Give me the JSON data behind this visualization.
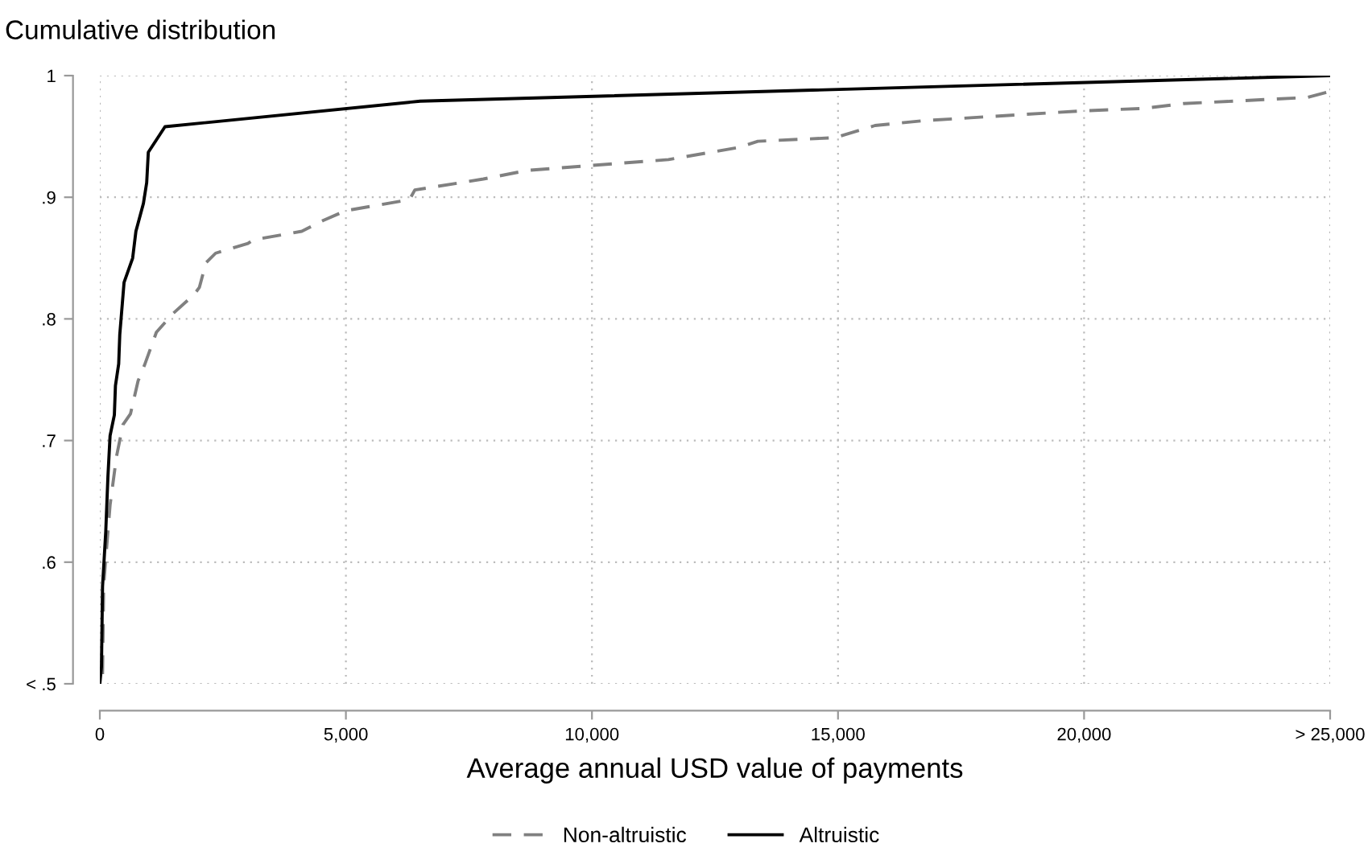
{
  "chart_data": {
    "type": "line",
    "title": "Cumulative distribution",
    "xlabel": "Average annual USD value of payments",
    "xlim": [
      0,
      25000
    ],
    "xticks": [
      {
        "value": 0,
        "label": "0"
      },
      {
        "value": 5000,
        "label": "5,000"
      },
      {
        "value": 10000,
        "label": "10,000"
      },
      {
        "value": 15000,
        "label": "15,000"
      },
      {
        "value": 20000,
        "label": "20,000"
      },
      {
        "value": 25000,
        "label": "> 25,000"
      }
    ],
    "ylim": [
      0.5,
      1
    ],
    "yticks": [
      {
        "value": 0.5,
        "label": "< .5"
      },
      {
        "value": 0.6,
        "label": ".6"
      },
      {
        "value": 0.7,
        "label": ".7"
      },
      {
        "value": 0.8,
        "label": ".8"
      },
      {
        "value": 0.9,
        "label": ".9"
      },
      {
        "value": 1,
        "label": "1"
      }
    ],
    "grid": true,
    "legend": "bottom",
    "marker": "none",
    "series": [
      {
        "name": "Non-altruistic",
        "color": "#808080",
        "line_style": "dashed",
        "x": [
          55,
          77,
          120,
          208,
          339,
          470,
          623,
          777,
          908,
          1149,
          1477,
          1915,
          2024,
          2155,
          2352,
          3009,
          3118,
          4103,
          4541,
          5000,
          6292,
          6401,
          7794,
          8672,
          11554,
          12995,
          13371,
          14937,
          15752,
          16754,
          19949,
          21202,
          22017,
          24523,
          25000
        ],
        "values": [
          0.508,
          0.58,
          0.603,
          0.647,
          0.687,
          0.713,
          0.722,
          0.749,
          0.762,
          0.789,
          0.804,
          0.82,
          0.826,
          0.846,
          0.854,
          0.862,
          0.865,
          0.872,
          0.881,
          0.889,
          0.898,
          0.906,
          0.915,
          0.922,
          0.931,
          0.941,
          0.946,
          0.949,
          0.959,
          0.963,
          0.971,
          0.973,
          0.977,
          0.982,
          0.987
        ]
      },
      {
        "name": "Altruistic",
        "color": "#000000",
        "line_style": "solid",
        "x": [
          0,
          33,
          55,
          120,
          164,
          208,
          295,
          317,
          383,
          405,
          492,
          667,
          733,
          886,
          952,
          985,
          1324,
          6510,
          25000
        ],
        "values": [
          0.5,
          0.514,
          0.58,
          0.625,
          0.67,
          0.704,
          0.721,
          0.745,
          0.763,
          0.787,
          0.83,
          0.85,
          0.872,
          0.895,
          0.912,
          0.937,
          0.958,
          0.979,
          1.0
        ]
      }
    ]
  }
}
